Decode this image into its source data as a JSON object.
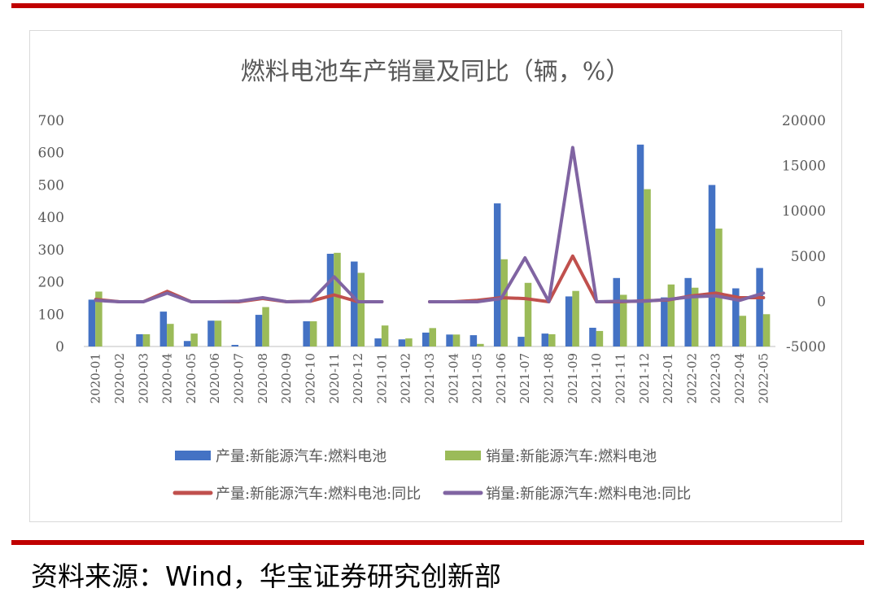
{
  "source": "资料来源：Wind，华宝证券研究创新部",
  "chart_data": {
    "type": "bar",
    "title": "燃料电池车产销量及同比（辆，%）",
    "categories": [
      "2020-01",
      "2020-02",
      "2020-03",
      "2020-04",
      "2020-05",
      "2020-06",
      "2020-07",
      "2020-08",
      "2020-09",
      "2020-10",
      "2020-11",
      "2020-12",
      "2021-01",
      "2021-02",
      "2021-03",
      "2021-04",
      "2021-05",
      "2021-06",
      "2021-07",
      "2021-08",
      "2021-09",
      "2021-10",
      "2021-11",
      "2021-12",
      "2022-01",
      "2022-02",
      "2022-03",
      "2022-04",
      "2022-05"
    ],
    "y_left": {
      "ylim": [
        0,
        700
      ],
      "ticks": [
        0,
        100,
        200,
        300,
        400,
        500,
        600,
        700
      ]
    },
    "y_right": {
      "ylim": [
        -5000,
        20000
      ],
      "ticks": [
        -5000,
        0,
        5000,
        10000,
        15000,
        20000
      ]
    },
    "legend_position": "bottom",
    "grid": false,
    "series": [
      {
        "name": "产量:新能源汽车:燃料电池",
        "type": "bar",
        "axis": "left",
        "color": "#4472c4",
        "values": [
          145,
          null,
          38,
          108,
          17,
          80,
          5,
          98,
          null,
          78,
          287,
          263,
          25,
          22,
          43,
          37,
          35,
          443,
          30,
          40,
          155,
          58,
          212,
          625,
          152,
          212,
          500,
          180,
          243
        ]
      },
      {
        "name": "销量:新能源汽车:燃料电池",
        "type": "bar",
        "axis": "left",
        "color": "#9bbb59",
        "values": [
          170,
          null,
          38,
          70,
          40,
          80,
          null,
          122,
          null,
          78,
          290,
          228,
          65,
          25,
          57,
          37,
          8,
          270,
          197,
          38,
          172,
          48,
          160,
          487,
          192,
          182,
          365,
          95,
          100
        ]
      },
      {
        "name": "产量:新能源汽车:燃料电池:同比",
        "type": "line",
        "axis": "right",
        "color": "#c0504d",
        "values": [
          200,
          -50,
          -50,
          1100,
          -50,
          -50,
          -50,
          300,
          -50,
          0,
          700,
          -50,
          -50,
          null,
          -50,
          -50,
          100,
          400,
          300,
          -50,
          5000,
          -50,
          -50,
          50,
          150,
          600,
          900,
          400,
          400
        ]
      },
      {
        "name": "销量:新能源汽车:燃料电池:同比",
        "type": "line",
        "axis": "right",
        "color": "#8064a2",
        "values": [
          100,
          -50,
          -50,
          900,
          -50,
          -50,
          0,
          400,
          -50,
          0,
          2700,
          -50,
          -50,
          null,
          -50,
          -50,
          -50,
          300,
          4800,
          -50,
          17000,
          -50,
          0,
          0,
          200,
          500,
          600,
          100,
          900
        ]
      }
    ]
  }
}
